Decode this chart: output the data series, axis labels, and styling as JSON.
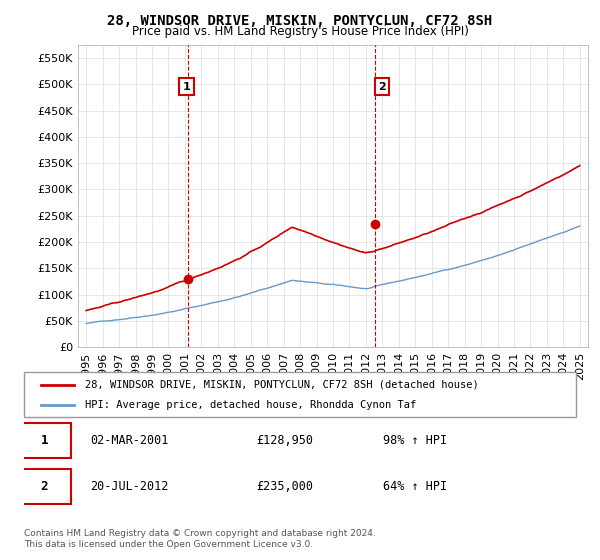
{
  "title": "28, WINDSOR DRIVE, MISKIN, PONTYCLUN, CF72 8SH",
  "subtitle": "Price paid vs. HM Land Registry's House Price Index (HPI)",
  "ylabel_ticks": [
    "£0",
    "£50K",
    "£100K",
    "£150K",
    "£200K",
    "£250K",
    "£300K",
    "£350K",
    "£400K",
    "£450K",
    "£500K",
    "£550K"
  ],
  "ytick_vals": [
    0,
    50000,
    100000,
    150000,
    200000,
    250000,
    300000,
    350000,
    400000,
    450000,
    500000,
    550000
  ],
  "ylim": [
    0,
    575000
  ],
  "red_color": "#cc0000",
  "blue_color": "#6699cc",
  "dashed_red_color": "#cc0000",
  "legend_label_red": "28, WINDSOR DRIVE, MISKIN, PONTYCLUN, CF72 8SH (detached house)",
  "legend_label_blue": "HPI: Average price, detached house, Rhondda Cynon Taf",
  "purchase1_label": "1",
  "purchase1_date": "02-MAR-2001",
  "purchase1_price": "£128,950",
  "purchase1_hpi": "98% ↑ HPI",
  "purchase2_label": "2",
  "purchase2_date": "20-JUL-2012",
  "purchase2_price": "£235,000",
  "purchase2_hpi": "64% ↑ HPI",
  "footer": "Contains HM Land Registry data © Crown copyright and database right 2024.\nThis data is licensed under the Open Government Licence v3.0.",
  "purchase1_year": 2001.17,
  "purchase2_year": 2012.55,
  "purchase1_price_val": 128950,
  "purchase2_price_val": 235000
}
